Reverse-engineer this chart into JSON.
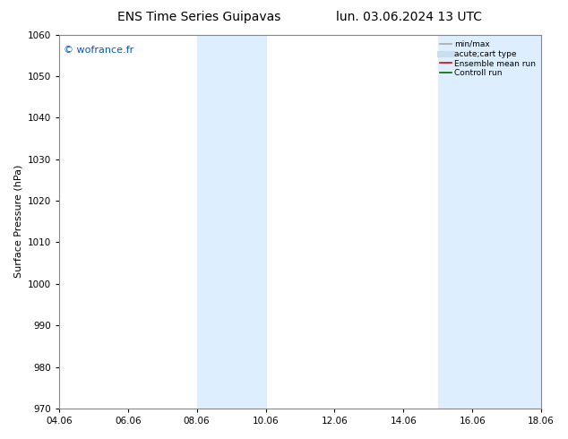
{
  "title_left": "ENS Time Series Guipavas",
  "title_right": "lun. 03.06.2024 13 UTC",
  "ylabel": "Surface Pressure (hPa)",
  "watermark": "© wofrance.fr",
  "watermark_color": "#0055cc",
  "ylim": [
    970,
    1060
  ],
  "yticks": [
    970,
    980,
    990,
    1000,
    1010,
    1020,
    1030,
    1040,
    1050,
    1060
  ],
  "xtick_labels": [
    "04.06",
    "06.06",
    "08.06",
    "10.06",
    "12.06",
    "14.06",
    "16.06",
    "18.06"
  ],
  "xtick_positions": [
    0,
    2,
    4,
    6,
    8,
    10,
    12,
    14
  ],
  "shaded_bands": [
    {
      "x_start": 4.0,
      "x_end": 5.0
    },
    {
      "x_start": 5.0,
      "x_end": 6.0
    },
    {
      "x_start": 11.0,
      "x_end": 12.0
    },
    {
      "x_start": 12.0,
      "x_end": 14.0
    }
  ],
  "shade_color": "#ddeeff",
  "background_color": "#ffffff",
  "legend_entries": [
    {
      "label": "min/max",
      "color": "#aaaaaa",
      "lw": 1.2,
      "linestyle": "-"
    },
    {
      "label": "acute;cart type",
      "color": "#c8dff0",
      "lw": 5,
      "linestyle": "-"
    },
    {
      "label": "Ensemble mean run",
      "color": "#dd0000",
      "lw": 1.2,
      "linestyle": "-"
    },
    {
      "label": "Controll run",
      "color": "#006600",
      "lw": 1.2,
      "linestyle": "-"
    }
  ],
  "title_fontsize": 10,
  "tick_fontsize": 7.5,
  "ylabel_fontsize": 8,
  "axes_edge_color": "#888888"
}
